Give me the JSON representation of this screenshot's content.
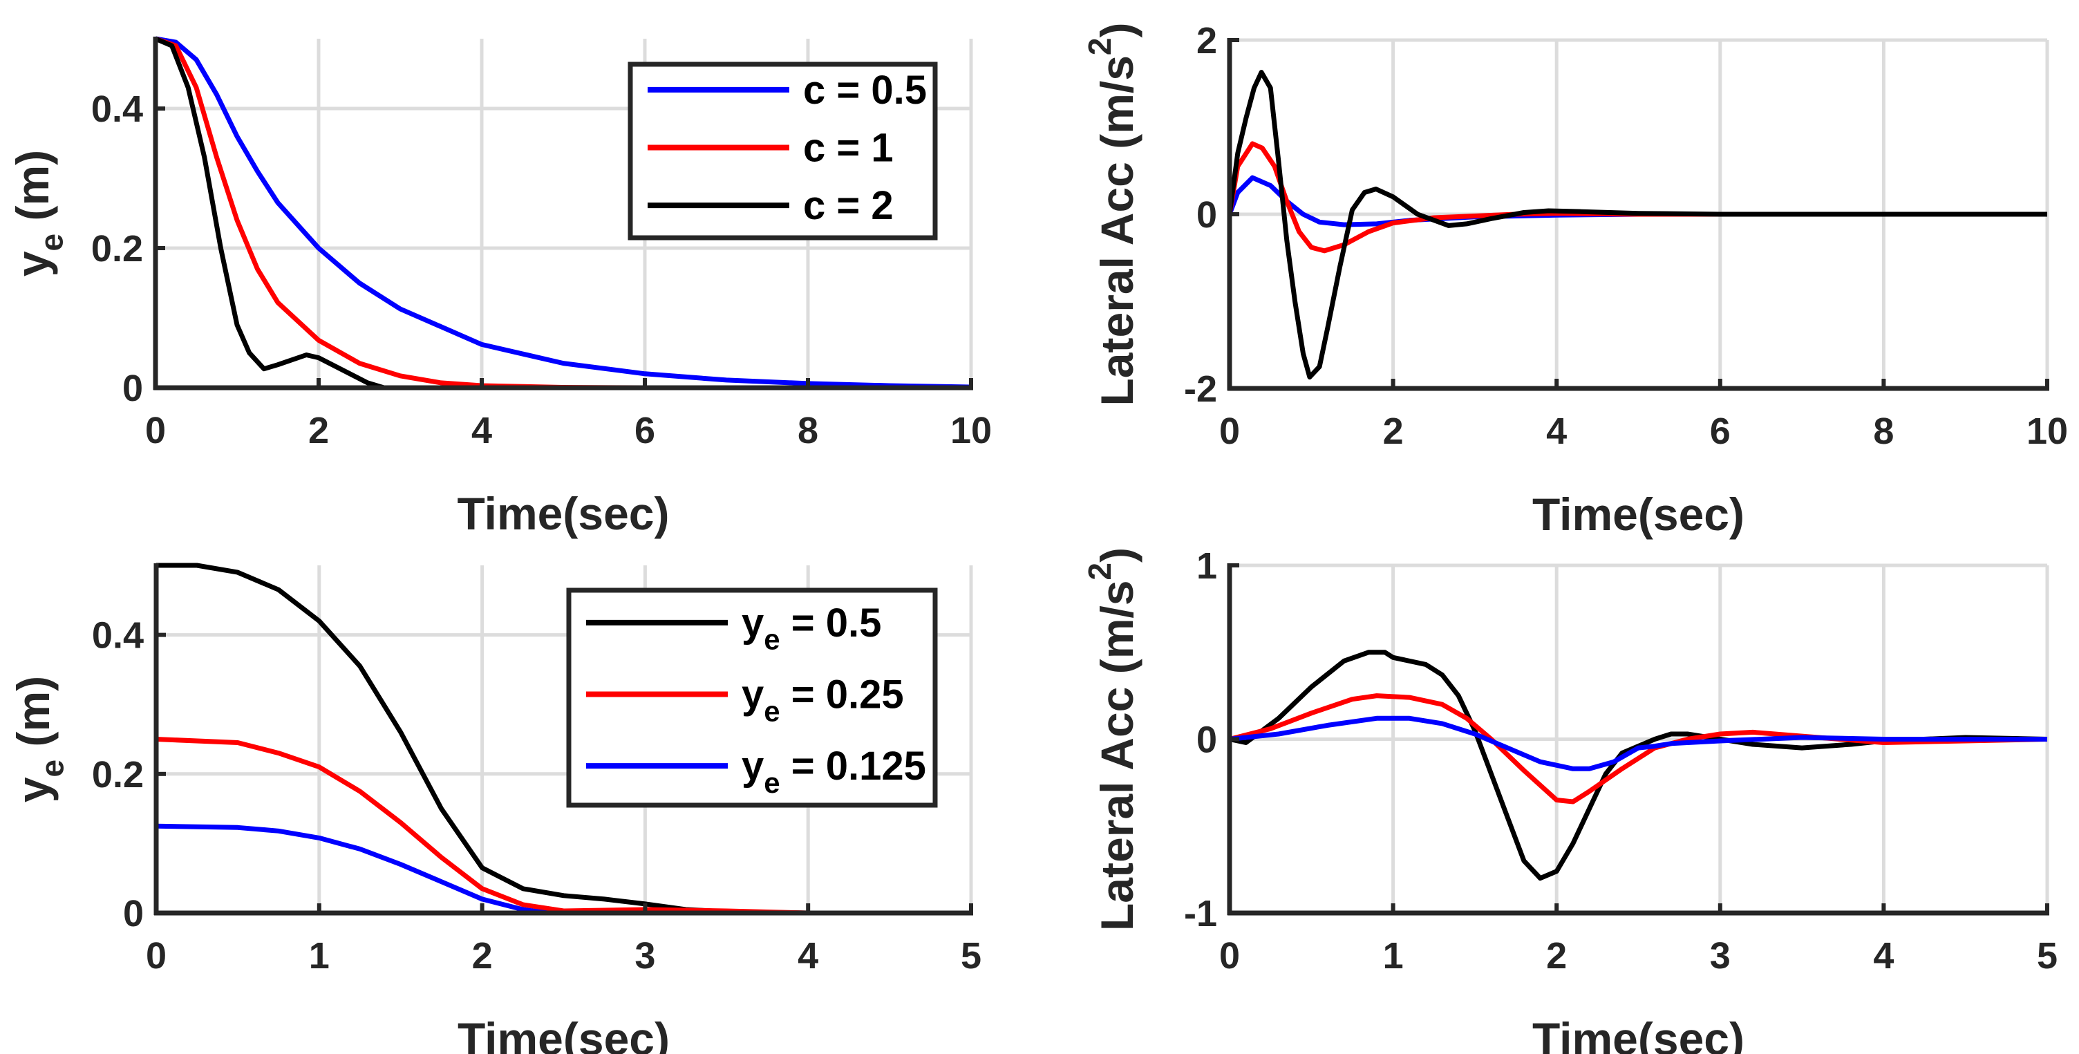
{
  "colors": {
    "blue": "#0000ff",
    "red": "#ff0000",
    "black": "#000000",
    "grid": "#dcdcdc",
    "axis": "#262626"
  },
  "chart_data": [
    {
      "type": "line",
      "id": "tl",
      "xlabel": "Time(sec)",
      "ylabel": {
        "base": "y",
        "sub": "e",
        "rest": " (m)"
      },
      "xlim": [
        0,
        10
      ],
      "ylim": [
        0,
        0.5
      ],
      "xticks": [
        0,
        2,
        4,
        6,
        8,
        10
      ],
      "yticks": [
        0,
        0.2,
        0.4
      ],
      "xtick_labels": [
        "0",
        "2",
        "4",
        "6",
        "8",
        "10"
      ],
      "ytick_labels": [
        "0",
        "0.2",
        "0.4"
      ],
      "grid": true,
      "legend_position": "top-right",
      "series": [
        {
          "name": "c = 0.5",
          "legend": {
            "base": "c = 0.5"
          },
          "color": "#0000ff",
          "x": [
            0,
            0.25,
            0.5,
            0.75,
            1,
            1.25,
            1.5,
            2,
            2.5,
            3,
            4,
            5,
            6,
            7,
            8,
            9,
            10
          ],
          "y": [
            0.5,
            0.495,
            0.47,
            0.42,
            0.36,
            0.31,
            0.265,
            0.2,
            0.15,
            0.113,
            0.062,
            0.035,
            0.02,
            0.011,
            0.006,
            0.003,
            0.001
          ]
        },
        {
          "name": "c = 1",
          "legend": {
            "base": "c = 1"
          },
          "color": "#ff0000",
          "x": [
            0,
            0.25,
            0.5,
            0.75,
            1,
            1.25,
            1.5,
            2,
            2.5,
            3,
            3.5,
            4,
            5,
            6,
            10
          ],
          "y": [
            0.5,
            0.49,
            0.43,
            0.33,
            0.24,
            0.17,
            0.122,
            0.068,
            0.035,
            0.017,
            0.007,
            0.003,
            0.0005,
            0,
            0
          ]
        },
        {
          "name": "c = 2",
          "legend": {
            "base": "c = 2"
          },
          "color": "#000000",
          "x": [
            0,
            0.2,
            0.4,
            0.6,
            0.8,
            1.0,
            1.15,
            1.33,
            1.5,
            1.85,
            2.0,
            2.3,
            2.6,
            2.8,
            10
          ],
          "y": [
            0.5,
            0.49,
            0.43,
            0.33,
            0.2,
            0.09,
            0.05,
            0.027,
            0.033,
            0.047,
            0.043,
            0.025,
            0.007,
            0,
            0
          ]
        }
      ]
    },
    {
      "type": "line",
      "id": "tr",
      "xlabel": "Time(sec)",
      "ylabel": {
        "base": "Lateral Acc (m/s",
        "sup": "2",
        "rest": ")"
      },
      "xlim": [
        0,
        10
      ],
      "ylim": [
        -2,
        2
      ],
      "xticks": [
        0,
        2,
        4,
        6,
        8,
        10
      ],
      "yticks": [
        -2,
        0,
        2
      ],
      "xtick_labels": [
        "0",
        "2",
        "4",
        "6",
        "8",
        "10"
      ],
      "ytick_labels": [
        "-2",
        "0",
        "2"
      ],
      "grid": true,
      "series": [
        {
          "name": "c = 0.5",
          "color": "#0000ff",
          "x": [
            0,
            0.1,
            0.28,
            0.5,
            0.7,
            0.9,
            1.1,
            1.4,
            1.8,
            2.2,
            3,
            4,
            5,
            10
          ],
          "y": [
            0,
            0.25,
            0.42,
            0.33,
            0.15,
            0,
            -0.09,
            -0.12,
            -0.11,
            -0.07,
            -0.03,
            -0.01,
            0,
            0
          ]
        },
        {
          "name": "c = 1",
          "color": "#ff0000",
          "x": [
            0,
            0.1,
            0.28,
            0.4,
            0.55,
            0.7,
            0.85,
            1.0,
            1.16,
            1.4,
            1.7,
            2,
            2.5,
            3,
            3.5,
            4,
            5,
            10
          ],
          "y": [
            0,
            0.55,
            0.81,
            0.76,
            0.55,
            0.15,
            -0.2,
            -0.38,
            -0.42,
            -0.35,
            -0.2,
            -0.1,
            -0.04,
            -0.02,
            0,
            0.01,
            0,
            0
          ]
        },
        {
          "name": "c = 2",
          "color": "#000000",
          "x": [
            0,
            0.1,
            0.2,
            0.3,
            0.39,
            0.5,
            0.6,
            0.7,
            0.8,
            0.9,
            0.98,
            1.1,
            1.2,
            1.35,
            1.5,
            1.65,
            1.79,
            2.0,
            2.3,
            2.68,
            2.9,
            3.2,
            3.6,
            3.9,
            4.3,
            5,
            6,
            10
          ],
          "y": [
            0,
            0.7,
            1.1,
            1.45,
            1.63,
            1.45,
            0.6,
            -0.3,
            -1.0,
            -1.6,
            -1.87,
            -1.75,
            -1.3,
            -0.6,
            0.05,
            0.25,
            0.29,
            0.2,
            0,
            -0.13,
            -0.11,
            -0.05,
            0.02,
            0.04,
            0.03,
            0.01,
            0,
            0
          ]
        }
      ]
    },
    {
      "type": "line",
      "id": "bl",
      "xlabel": "Time(sec)",
      "ylabel": {
        "base": "y",
        "sub": "e",
        "rest": " (m)"
      },
      "xlim": [
        0,
        5
      ],
      "ylim": [
        0,
        0.5
      ],
      "xticks": [
        0,
        1,
        2,
        3,
        4,
        5
      ],
      "yticks": [
        0,
        0.2,
        0.4
      ],
      "xtick_labels": [
        "0",
        "1",
        "2",
        "3",
        "4",
        "5"
      ],
      "ytick_labels": [
        "0",
        "0.2",
        "0.4"
      ],
      "grid": true,
      "legend_position": "top-right",
      "series": [
        {
          "name": "y_e = 0.5",
          "legend": {
            "base": "y",
            "sub": "e",
            "rest": " = 0.5"
          },
          "color": "#000000",
          "x": [
            0,
            0.25,
            0.5,
            0.75,
            1,
            1.25,
            1.5,
            1.75,
            2,
            2.25,
            2.5,
            2.75,
            3,
            3.25,
            3.5,
            4,
            5
          ],
          "y": [
            0.5,
            0.5,
            0.49,
            0.465,
            0.42,
            0.355,
            0.26,
            0.15,
            0.065,
            0.035,
            0.025,
            0.02,
            0.013,
            0.005,
            0.002,
            0,
            0
          ]
        },
        {
          "name": "y_e = 0.25",
          "legend": {
            "base": "y",
            "sub": "e",
            "rest": " = 0.25"
          },
          "color": "#ff0000",
          "x": [
            0,
            0.5,
            0.75,
            1,
            1.25,
            1.5,
            1.75,
            2,
            2.25,
            2.5,
            2.75,
            3,
            3.5,
            4,
            5
          ],
          "y": [
            0.25,
            0.245,
            0.23,
            0.21,
            0.175,
            0.13,
            0.08,
            0.035,
            0.012,
            0.003,
            0.004,
            0.005,
            0.003,
            0,
            0
          ]
        },
        {
          "name": "y_e = 0.125",
          "legend": {
            "base": "y",
            "sub": "e",
            "rest": " = 0.125"
          },
          "color": "#0000ff",
          "x": [
            0,
            0.5,
            0.75,
            1,
            1.25,
            1.5,
            1.75,
            2,
            2.25,
            2.4,
            5
          ],
          "y": [
            0.125,
            0.123,
            0.118,
            0.108,
            0.092,
            0.07,
            0.045,
            0.02,
            0.005,
            0,
            0
          ]
        }
      ]
    },
    {
      "type": "line",
      "id": "br",
      "xlabel": "Time(sec)",
      "ylabel": {
        "base": "Lateral Acc (m/s",
        "sup": "2",
        "rest": ")"
      },
      "xlim": [
        0,
        5
      ],
      "ylim": [
        -1,
        1
      ],
      "xticks": [
        0,
        1,
        2,
        3,
        4,
        5
      ],
      "yticks": [
        -1,
        0,
        1
      ],
      "xtick_labels": [
        "0",
        "1",
        "2",
        "3",
        "4",
        "5"
      ],
      "ytick_labels": [
        "-1",
        "0",
        "1"
      ],
      "grid": true,
      "series": [
        {
          "name": "y_e = 0.5",
          "color": "#000000",
          "x": [
            0,
            0.1,
            0.3,
            0.5,
            0.7,
            0.85,
            0.95,
            1.0,
            1.2,
            1.3,
            1.4,
            1.5,
            1.6,
            1.7,
            1.8,
            1.9,
            2.0,
            2.1,
            2.2,
            2.3,
            2.4,
            2.6,
            2.7,
            2.8,
            3.0,
            3.2,
            3.5,
            3.8,
            4.0,
            4.5,
            5
          ],
          "y": [
            0,
            -0.02,
            0.12,
            0.3,
            0.45,
            0.5,
            0.5,
            0.47,
            0.43,
            0.37,
            0.25,
            0.05,
            -0.2,
            -0.45,
            -0.7,
            -0.8,
            -0.76,
            -0.6,
            -0.4,
            -0.2,
            -0.08,
            0,
            0.03,
            0.03,
            0,
            -0.03,
            -0.05,
            -0.03,
            -0.01,
            0.01,
            0
          ]
        },
        {
          "name": "y_e = 0.25",
          "color": "#ff0000",
          "x": [
            0,
            0.25,
            0.5,
            0.75,
            0.9,
            1.1,
            1.3,
            1.45,
            1.6,
            1.8,
            2.0,
            2.1,
            2.2,
            2.4,
            2.6,
            2.8,
            3.0,
            3.2,
            3.6,
            4,
            4.5,
            5
          ],
          "y": [
            0,
            0.06,
            0.15,
            0.23,
            0.25,
            0.24,
            0.2,
            0.12,
            0,
            -0.18,
            -0.35,
            -0.36,
            -0.3,
            -0.17,
            -0.05,
            0,
            0.03,
            0.04,
            0.01,
            -0.02,
            -0.01,
            0
          ]
        },
        {
          "name": "y_e = 0.125",
          "color": "#0000ff",
          "x": [
            0,
            0.3,
            0.6,
            0.9,
            1.1,
            1.3,
            1.5,
            1.7,
            1.9,
            2.1,
            2.2,
            2.35,
            2.5,
            2.6,
            2.7,
            3,
            3.5,
            4,
            5
          ],
          "y": [
            0,
            0.03,
            0.08,
            0.12,
            0.12,
            0.09,
            0.03,
            -0.05,
            -0.13,
            -0.17,
            -0.17,
            -0.13,
            -0.05,
            -0.04,
            -0.025,
            -0.01,
            0.01,
            0,
            0
          ]
        }
      ]
    }
  ]
}
